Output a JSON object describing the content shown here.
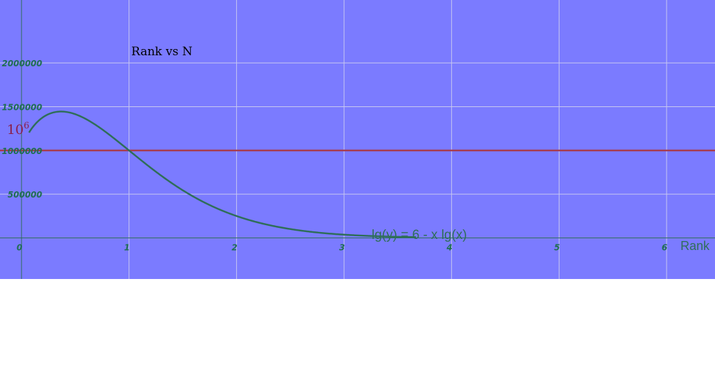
{
  "chart_data": {
    "type": "line",
    "title": "Rank vs N",
    "xlabel": "Rank",
    "ylabel": "",
    "xlim": [
      -0.2,
      6.45
    ],
    "ylim": [
      -470000,
      2720000
    ],
    "x_ticks": [
      0,
      1,
      2,
      3,
      4,
      5,
      6
    ],
    "x_tick_labels": [
      "0",
      "1",
      "2",
      "3",
      "4",
      "5",
      "6"
    ],
    "y_ticks": [
      500000,
      1000000,
      1500000,
      2000000
    ],
    "y_tick_labels": [
      "500000",
      "1000000",
      "1500000",
      "2000000"
    ],
    "grid": true,
    "legend": "none",
    "curve": {
      "formula": "lg(y) = 6 - x lg(x)",
      "x_range": [
        0.07,
        3.67
      ],
      "color": "#2f6e59"
    },
    "reference_line": {
      "y": 1000000,
      "base": "10",
      "exponent": "6",
      "color": "#a83c4e"
    },
    "colors": {
      "background": "#7b7bff",
      "grid": "#c8c8f0",
      "axis": "#2f6e59",
      "tick_text": "#1f6e52",
      "title_text": "#000000",
      "ref_label": "#8b1e4a"
    }
  }
}
